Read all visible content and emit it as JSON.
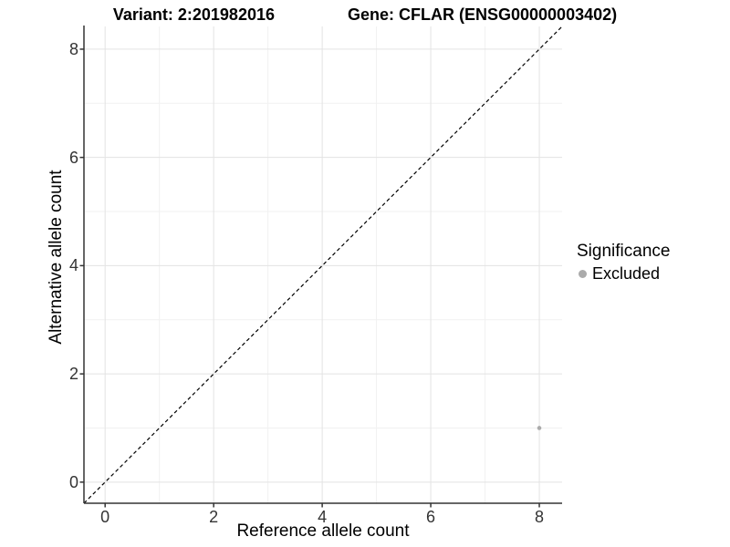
{
  "chart_data": {
    "type": "scatter",
    "title_left": "Variant: 2:201982016",
    "title_right": "Gene: CFLAR (ENSG00000003402)",
    "xlabel": "Reference allele count",
    "ylabel": "Alternative allele count",
    "xlim": [
      -0.39,
      8.42
    ],
    "ylim": [
      -0.39,
      8.42
    ],
    "x_ticks": [
      0,
      2,
      4,
      6,
      8
    ],
    "y_ticks": [
      0,
      2,
      4,
      6,
      8
    ],
    "x_minor_ticks": [
      1,
      3,
      5,
      7
    ],
    "y_minor_ticks": [
      1,
      3,
      5,
      7
    ],
    "grid": "major+minor",
    "reference_line": {
      "type": "identity y=x",
      "style": "dashed",
      "color": "#000000"
    },
    "series": [
      {
        "name": "Excluded",
        "color": "#ababab",
        "points": [
          {
            "x": 8,
            "y": 1
          }
        ]
      }
    ],
    "legend": {
      "title": "Significance",
      "position": "right",
      "items": [
        {
          "label": "Excluded",
          "color": "#ababab"
        }
      ]
    }
  },
  "colors": {
    "point": "#ababab",
    "grid_major": "#e3e3e3",
    "grid_minor": "#f1f1f1",
    "axis_line": "#333333",
    "tick_mark": "#333333",
    "dashed_line": "#000000"
  }
}
